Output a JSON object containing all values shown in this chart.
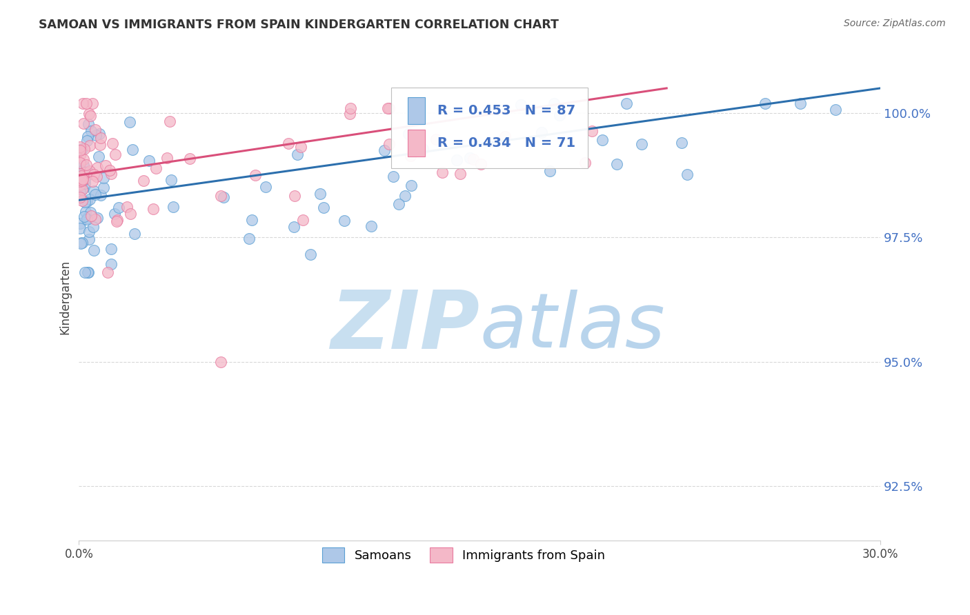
{
  "title": "SAMOAN VS IMMIGRANTS FROM SPAIN KINDERGARTEN CORRELATION CHART",
  "source": "Source: ZipAtlas.com",
  "ylabel": "Kindergarten",
  "xmin": 0.0,
  "xmax": 0.3,
  "ymin": 0.914,
  "ymax": 1.012,
  "yticks": [
    0.925,
    0.95,
    0.975,
    1.0
  ],
  "ytick_labels": [
    "92.5%",
    "95.0%",
    "97.5%",
    "100.0%"
  ],
  "legend_blue_label": "Samoans",
  "legend_pink_label": "Immigrants from Spain",
  "corr_blue_r": "R = 0.453",
  "corr_blue_n": "N = 87",
  "corr_pink_r": "R = 0.434",
  "corr_pink_n": "N = 71",
  "blue_scatter_color": "#aec8e8",
  "blue_edge_color": "#5a9fd4",
  "pink_scatter_color": "#f4b8c8",
  "pink_edge_color": "#e87a9f",
  "line_blue_color": "#2c6fad",
  "line_pink_color": "#d94f7a",
  "watermark_zip_color": "#c8dff0",
  "watermark_atlas_color": "#b8d4ec",
  "grid_color": "#d8d8d8",
  "tick_color": "#4472c4",
  "title_color": "#333333",
  "source_color": "#666666"
}
